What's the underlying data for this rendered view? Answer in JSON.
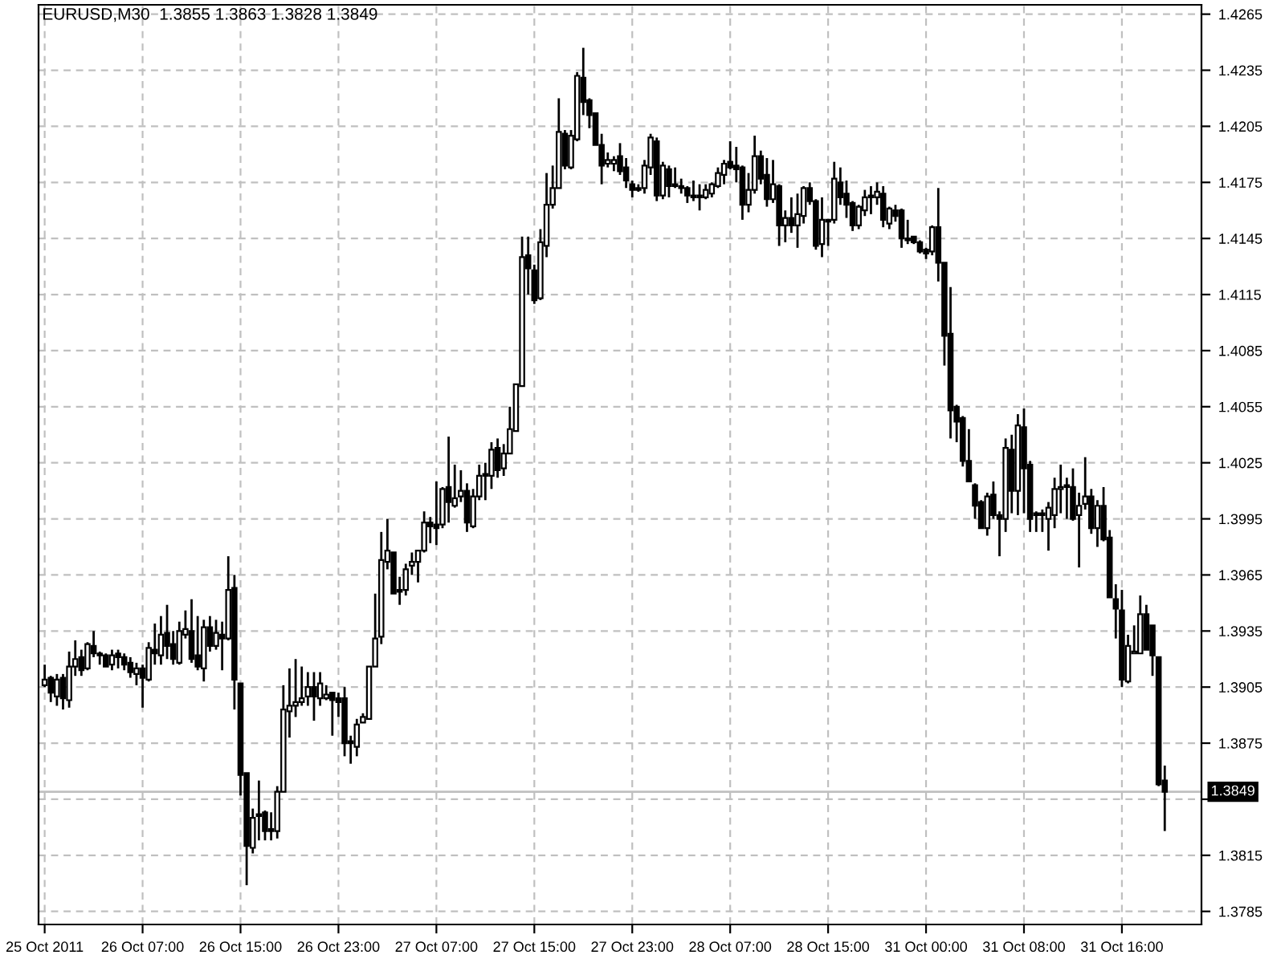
{
  "chart_data": {
    "type": "candlestick",
    "title": "EURUSD,M30  1.3855 1.3863 1.3828 1.3849",
    "categories": [
      "25 Oct 2011",
      null,
      null,
      null,
      null,
      null,
      null,
      null,
      null,
      null,
      null,
      null,
      null,
      null,
      null,
      null,
      "26 Oct 07:00",
      null,
      null,
      null,
      null,
      null,
      null,
      null,
      null,
      null,
      null,
      null,
      null,
      null,
      null,
      null,
      "26 Oct 15:00",
      null,
      null,
      null,
      null,
      null,
      null,
      null,
      null,
      null,
      null,
      null,
      null,
      null,
      null,
      null,
      "26 Oct 23:00",
      null,
      null,
      null,
      null,
      null,
      null,
      null,
      null,
      null,
      null,
      null,
      null,
      null,
      null,
      null,
      "27 Oct 07:00",
      null,
      null,
      null,
      null,
      null,
      null,
      null,
      null,
      null,
      null,
      null,
      null,
      null,
      null,
      null,
      "27 Oct 15:00",
      null,
      null,
      null,
      null,
      null,
      null,
      null,
      null,
      null,
      null,
      null,
      null,
      null,
      null,
      null,
      "27 Oct 23:00",
      null,
      null,
      null,
      null,
      null,
      null,
      null,
      null,
      null,
      null,
      null,
      null,
      null,
      null,
      null,
      "28 Oct 07:00",
      null,
      null,
      null,
      null,
      null,
      null,
      null,
      null,
      null,
      null,
      null,
      null,
      null,
      null,
      null,
      "28 Oct 15:00",
      null,
      null,
      null,
      null,
      null,
      null,
      null,
      null,
      null,
      null,
      null,
      null,
      null,
      null,
      null,
      "31 Oct 00:00",
      null,
      null,
      null,
      null,
      null,
      null,
      null,
      null,
      null,
      null,
      null,
      null,
      null,
      null,
      null,
      "31 Oct 08:00",
      null,
      null,
      null,
      null,
      null,
      null,
      null,
      null,
      null,
      null,
      null,
      null,
      null,
      null,
      null,
      "31 Oct 16:00",
      null,
      null,
      null,
      null,
      null,
      null,
      null
    ],
    "color": "#000000",
    "ohlc": [
      [
        1.3906,
        1.3917,
        1.3905,
        1.3909
      ],
      [
        1.391,
        1.3911,
        1.3897,
        1.3902
      ],
      [
        1.39,
        1.3912,
        1.3895,
        1.3909
      ],
      [
        1.391,
        1.3912,
        1.3893,
        1.3899
      ],
      [
        1.3898,
        1.3924,
        1.3894,
        1.3916
      ],
      [
        1.3916,
        1.393,
        1.3911,
        1.392
      ],
      [
        1.3921,
        1.3925,
        1.3911,
        1.3914
      ],
      [
        1.3915,
        1.3929,
        1.3914,
        1.3928
      ],
      [
        1.3927,
        1.3935,
        1.3921,
        1.3923
      ],
      [
        1.3923,
        1.3924,
        1.3917,
        1.3922
      ],
      [
        1.3922,
        1.3923,
        1.3916,
        1.3916
      ],
      [
        1.3917,
        1.3925,
        1.3914,
        1.3922
      ],
      [
        1.3923,
        1.3925,
        1.3915,
        1.3921
      ],
      [
        1.3921,
        1.3923,
        1.3914,
        1.3917
      ],
      [
        1.3918,
        1.3921,
        1.391,
        1.3913
      ],
      [
        1.3912,
        1.3918,
        1.3906,
        1.3915
      ],
      [
        1.3915,
        1.3917,
        1.3894,
        1.391
      ],
      [
        1.3909,
        1.3929,
        1.3908,
        1.3926
      ],
      [
        1.3925,
        1.3939,
        1.3917,
        1.3923
      ],
      [
        1.3922,
        1.3943,
        1.3917,
        1.3933
      ],
      [
        1.3934,
        1.3949,
        1.392,
        1.3927
      ],
      [
        1.3928,
        1.3935,
        1.3917,
        1.392
      ],
      [
        1.3918,
        1.394,
        1.3917,
        1.3935
      ],
      [
        1.3933,
        1.3946,
        1.3931,
        1.3936
      ],
      [
        1.3935,
        1.3952,
        1.3918,
        1.392
      ],
      [
        1.3922,
        1.3943,
        1.3914,
        1.3916
      ],
      [
        1.3915,
        1.3941,
        1.3908,
        1.3937
      ],
      [
        1.3937,
        1.3943,
        1.3924,
        1.3927
      ],
      [
        1.3927,
        1.3941,
        1.3925,
        1.3934
      ],
      [
        1.3933,
        1.394,
        1.3914,
        1.3931
      ],
      [
        1.3931,
        1.3975,
        1.393,
        1.3957
      ],
      [
        1.3958,
        1.3965,
        1.3893,
        1.3909
      ],
      [
        1.3907,
        1.3907,
        1.3847,
        1.3858
      ],
      [
        1.3859,
        1.3859,
        1.3799,
        1.382
      ],
      [
        1.3819,
        1.384,
        1.3816,
        1.3835
      ],
      [
        1.3837,
        1.3855,
        1.3823,
        1.3836
      ],
      [
        1.3838,
        1.3839,
        1.3823,
        1.3828
      ],
      [
        1.3829,
        1.3838,
        1.3823,
        1.3828
      ],
      [
        1.3828,
        1.3852,
        1.3824,
        1.3849
      ],
      [
        1.3849,
        1.3906,
        1.3849,
        1.3893
      ],
      [
        1.3892,
        1.3915,
        1.3878,
        1.3895
      ],
      [
        1.3895,
        1.392,
        1.3889,
        1.3897
      ],
      [
        1.3897,
        1.3916,
        1.3895,
        1.3899
      ],
      [
        1.39,
        1.3913,
        1.3895,
        1.3905
      ],
      [
        1.3905,
        1.3913,
        1.3887,
        1.39
      ],
      [
        1.3899,
        1.3913,
        1.3895,
        1.3907
      ],
      [
        1.3899,
        1.3906,
        1.3898,
        1.3901
      ],
      [
        1.3902,
        1.3902,
        1.3879,
        1.3898
      ],
      [
        1.3899,
        1.3902,
        1.3889,
        1.3897
      ],
      [
        1.3899,
        1.3905,
        1.3868,
        1.3875
      ],
      [
        1.3876,
        1.3879,
        1.3864,
        1.3875
      ],
      [
        1.3873,
        1.3888,
        1.3868,
        1.3885
      ],
      [
        1.3886,
        1.3891,
        1.3886,
        1.3889
      ],
      [
        1.3888,
        1.3916,
        1.3888,
        1.3916
      ],
      [
        1.3916,
        1.3955,
        1.3916,
        1.3931
      ],
      [
        1.3932,
        1.3988,
        1.3928,
        1.3973
      ],
      [
        1.3972,
        1.3995,
        1.3968,
        1.3978
      ],
      [
        1.3977,
        1.3977,
        1.3955,
        1.3955
      ],
      [
        1.3957,
        1.3964,
        1.3949,
        1.3956
      ],
      [
        1.3957,
        1.3971,
        1.3954,
        1.3968
      ],
      [
        1.397,
        1.3977,
        1.3965,
        1.3972
      ],
      [
        1.3972,
        1.3978,
        1.3961,
        1.3978
      ],
      [
        1.3978,
        1.3999,
        1.3977,
        1.3993
      ],
      [
        1.3993,
        1.3996,
        1.3982,
        1.3991
      ],
      [
        1.3992,
        1.4015,
        1.3981,
        1.399
      ],
      [
        1.3992,
        1.4012,
        1.399,
        1.4011
      ],
      [
        1.4012,
        1.4039,
        1.3993,
        1.4004
      ],
      [
        1.4002,
        1.4024,
        1.4001,
        1.4006
      ],
      [
        1.4007,
        1.4021,
        1.4004,
        1.401
      ],
      [
        1.401,
        1.4014,
        1.3988,
        1.3993
      ],
      [
        1.3991,
        1.4011,
        1.399,
        1.4007
      ],
      [
        1.4007,
        1.4024,
        1.4005,
        1.4018
      ],
      [
        1.4018,
        1.4025,
        1.4005,
        1.4019
      ],
      [
        1.4018,
        1.4036,
        1.4011,
        1.4032
      ],
      [
        1.4033,
        1.4038,
        1.4017,
        1.4021
      ],
      [
        1.4022,
        1.4035,
        1.4018,
        1.403
      ],
      [
        1.403,
        1.4055,
        1.403,
        1.4043
      ],
      [
        1.4042,
        1.4067,
        1.4042,
        1.4067
      ],
      [
        1.4066,
        1.4146,
        1.4066,
        1.4135
      ],
      [
        1.4136,
        1.4146,
        1.4115,
        1.4129
      ],
      [
        1.4128,
        1.4131,
        1.411,
        1.4112
      ],
      [
        1.4113,
        1.415,
        1.4112,
        1.4143
      ],
      [
        1.4141,
        1.418,
        1.4135,
        1.4163
      ],
      [
        1.4163,
        1.4184,
        1.4161,
        1.4172
      ],
      [
        1.4172,
        1.422,
        1.4172,
        1.4202
      ],
      [
        1.4201,
        1.4203,
        1.4182,
        1.4184
      ],
      [
        1.4183,
        1.4203,
        1.4182,
        1.42
      ],
      [
        1.4198,
        1.4234,
        1.4197,
        1.4232
      ],
      [
        1.4231,
        1.4247,
        1.4211,
        1.4218
      ],
      [
        1.4219,
        1.422,
        1.4204,
        1.4211
      ],
      [
        1.4212,
        1.4212,
        1.4195,
        1.4195
      ],
      [
        1.4195,
        1.4201,
        1.4174,
        1.4184
      ],
      [
        1.4185,
        1.4191,
        1.4183,
        1.4187
      ],
      [
        1.4185,
        1.4189,
        1.4181,
        1.4187
      ],
      [
        1.4189,
        1.4196,
        1.4179,
        1.4181
      ],
      [
        1.4183,
        1.4188,
        1.4172,
        1.4176
      ],
      [
        1.4174,
        1.4176,
        1.4167,
        1.4171
      ],
      [
        1.4172,
        1.4174,
        1.417,
        1.4171
      ],
      [
        1.4172,
        1.4187,
        1.4169,
        1.4184
      ],
      [
        1.4183,
        1.4201,
        1.4179,
        1.4199
      ],
      [
        1.4197,
        1.4199,
        1.4165,
        1.4168
      ],
      [
        1.4168,
        1.4186,
        1.4166,
        1.4184
      ],
      [
        1.4182,
        1.4184,
        1.4167,
        1.4173
      ],
      [
        1.4174,
        1.4183,
        1.4172,
        1.4173
      ],
      [
        1.4173,
        1.4177,
        1.4169,
        1.4172
      ],
      [
        1.4172,
        1.4173,
        1.4164,
        1.4168
      ],
      [
        1.4168,
        1.4176,
        1.4165,
        1.4167
      ],
      [
        1.4168,
        1.4174,
        1.416,
        1.4167
      ],
      [
        1.4167,
        1.4174,
        1.4166,
        1.4171
      ],
      [
        1.4169,
        1.4175,
        1.4167,
        1.4174
      ],
      [
        1.4173,
        1.4183,
        1.4172,
        1.418
      ],
      [
        1.4179,
        1.4187,
        1.4174,
        1.4185
      ],
      [
        1.4186,
        1.4197,
        1.4182,
        1.4183
      ],
      [
        1.4184,
        1.4194,
        1.4175,
        1.4182
      ],
      [
        1.4183,
        1.4184,
        1.4155,
        1.4163
      ],
      [
        1.4163,
        1.418,
        1.4159,
        1.4171
      ],
      [
        1.4171,
        1.42,
        1.4169,
        1.4189
      ],
      [
        1.4189,
        1.4192,
        1.4174,
        1.4177
      ],
      [
        1.4179,
        1.4188,
        1.4162,
        1.4166
      ],
      [
        1.4166,
        1.4187,
        1.4164,
        1.4174
      ],
      [
        1.4173,
        1.4174,
        1.4141,
        1.4152
      ],
      [
        1.4152,
        1.416,
        1.4143,
        1.4156
      ],
      [
        1.4156,
        1.4167,
        1.4148,
        1.4152
      ],
      [
        1.4152,
        1.4169,
        1.414,
        1.4158
      ],
      [
        1.4157,
        1.4173,
        1.4153,
        1.4172
      ],
      [
        1.4172,
        1.4175,
        1.4163,
        1.4165
      ],
      [
        1.4165,
        1.4166,
        1.4139,
        1.4141
      ],
      [
        1.4142,
        1.4167,
        1.4135,
        1.4155
      ],
      [
        1.4155,
        1.4155,
        1.4141,
        1.4154
      ],
      [
        1.4155,
        1.4186,
        1.4153,
        1.4177
      ],
      [
        1.4175,
        1.4183,
        1.4163,
        1.4167
      ],
      [
        1.4169,
        1.4176,
        1.4156,
        1.4163
      ],
      [
        1.4164,
        1.4165,
        1.4149,
        1.4152
      ],
      [
        1.4152,
        1.4163,
        1.415,
        1.4162
      ],
      [
        1.416,
        1.4171,
        1.4157,
        1.4167
      ],
      [
        1.4168,
        1.4173,
        1.4158,
        1.4167
      ],
      [
        1.4167,
        1.4175,
        1.4163,
        1.417
      ],
      [
        1.4169,
        1.4173,
        1.4151,
        1.4155
      ],
      [
        1.4153,
        1.4162,
        1.415,
        1.4161
      ],
      [
        1.416,
        1.4163,
        1.4154,
        1.4157
      ],
      [
        1.416,
        1.4161,
        1.414,
        1.4145
      ],
      [
        1.4145,
        1.4155,
        1.4142,
        1.4144
      ],
      [
        1.4146,
        1.4146,
        1.4142,
        1.4143
      ],
      [
        1.4143,
        1.4144,
        1.4137,
        1.4138
      ],
      [
        1.4139,
        1.414,
        1.4134,
        1.4137
      ],
      [
        1.4138,
        1.4152,
        1.4136,
        1.4151
      ],
      [
        1.4151,
        1.4172,
        1.4122,
        1.4132
      ],
      [
        1.4132,
        1.4132,
        1.4077,
        1.4093
      ],
      [
        1.4094,
        1.4119,
        1.4038,
        1.4053
      ],
      [
        1.4055,
        1.4056,
        1.4036,
        1.4047
      ],
      [
        1.4049,
        1.405,
        1.4023,
        1.4026
      ],
      [
        1.4026,
        1.4043,
        1.4015,
        1.4015
      ],
      [
        1.4013,
        1.4014,
        1.3995,
        1.4002
      ],
      [
        1.4004,
        1.4005,
        1.399,
        1.399
      ],
      [
        1.399,
        1.4009,
        1.3986,
        1.4007
      ],
      [
        1.4008,
        1.4015,
        1.3995,
        1.3997
      ],
      [
        1.3997,
        1.3999,
        1.3975,
        1.3995
      ],
      [
        1.3995,
        1.4038,
        1.3988,
        1.4033
      ],
      [
        1.4032,
        1.404,
        1.3998,
        1.401
      ],
      [
        1.401,
        1.4051,
        1.3997,
        1.4045
      ],
      [
        1.4044,
        1.4054,
        1.3998,
        1.4022
      ],
      [
        1.4024,
        1.4026,
        1.3988,
        1.3995
      ],
      [
        1.3998,
        1.3999,
        1.3988,
        1.3997
      ],
      [
        1.3997,
        1.4,
        1.3988,
        1.3998
      ],
      [
        1.3995,
        1.4004,
        1.3978,
        1.4001
      ],
      [
        1.3997,
        1.4017,
        1.399,
        1.4011
      ],
      [
        1.4011,
        1.4024,
        1.3998,
        1.4012
      ],
      [
        1.4013,
        1.4017,
        1.3995,
        1.4012
      ],
      [
        1.4012,
        1.4022,
        1.3994,
        1.3995
      ],
      [
        1.3997,
        1.4009,
        1.3969,
        1.4002
      ],
      [
        1.4003,
        1.4028,
        1.4,
        1.4007
      ],
      [
        1.4007,
        1.4011,
        1.3987,
        1.399
      ],
      [
        1.399,
        1.4005,
        1.398,
        1.4002
      ],
      [
        1.4002,
        1.4012,
        1.3983,
        1.3984
      ],
      [
        1.3985,
        1.3989,
        1.3953,
        1.3953
      ],
      [
        1.3952,
        1.396,
        1.3931,
        1.3947
      ],
      [
        1.3946,
        1.3957,
        1.3905,
        1.3909
      ],
      [
        1.3908,
        1.3933,
        1.3907,
        1.3927
      ],
      [
        1.3923,
        1.3938,
        1.3923,
        1.3924
      ],
      [
        1.3923,
        1.3954,
        1.3923,
        1.3944
      ],
      [
        1.3944,
        1.3949,
        1.3925,
        1.3925
      ],
      [
        1.3938,
        1.3938,
        1.3911,
        1.3922
      ],
      [
        1.3921,
        1.3921,
        1.3852,
        1.3853
      ],
      [
        1.3855,
        1.3863,
        1.3828,
        1.3849
      ]
    ],
    "ylim": [
      1.3778,
      1.427
    ],
    "yticks": [
      1.3785,
      1.3815,
      {
        "value": 1.3845,
        "label": null
      },
      1.3875,
      1.3905,
      1.3935,
      1.3965,
      1.3995,
      1.4025,
      1.4055,
      1.4085,
      1.4115,
      1.4145,
      1.4175,
      1.4205,
      1.4235,
      1.4265
    ],
    "ref_lines": [
      {
        "axis": "y",
        "value": 1.3849,
        "label": "1.3849",
        "color": "#c0c0c0"
      }
    ],
    "grid": true,
    "legend": false
  }
}
